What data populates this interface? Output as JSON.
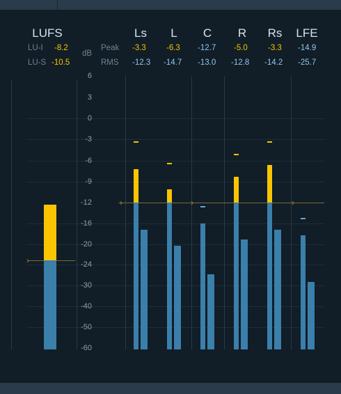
{
  "lufs": {
    "title": "LUFS",
    "lu_i_label": "LU-I",
    "lu_i_value": "-8.2",
    "lu_s_label": "LU-S",
    "lu_s_value": "-10.5"
  },
  "scale": {
    "unit": "dB",
    "peak_label": "Peak",
    "rms_label": "RMS",
    "ticks": [
      "6",
      "3",
      "0",
      "-3",
      "-6",
      "-9",
      "-12",
      "-16",
      "-20",
      "-24",
      "-30",
      "-40",
      "-50",
      "-60"
    ]
  },
  "channels": [
    {
      "name": "Ls",
      "peak": "-3.3",
      "rms": "-12.3"
    },
    {
      "name": "L",
      "peak": "-6.3",
      "rms": "-14.7"
    },
    {
      "name": "C",
      "peak": "-12.7",
      "rms": "-13.0"
    },
    {
      "name": "R",
      "peak": "-5.0",
      "rms": "-12.8"
    },
    {
      "name": "Rs",
      "peak": "-3.3",
      "rms": "-14.2"
    },
    {
      "name": "LFE",
      "peak": "-14.9",
      "rms": "-25.7"
    }
  ],
  "colors": {
    "yellow": "#f3c500",
    "blue": "#3b7fab",
    "value_blue": "#8ec8ec"
  }
}
